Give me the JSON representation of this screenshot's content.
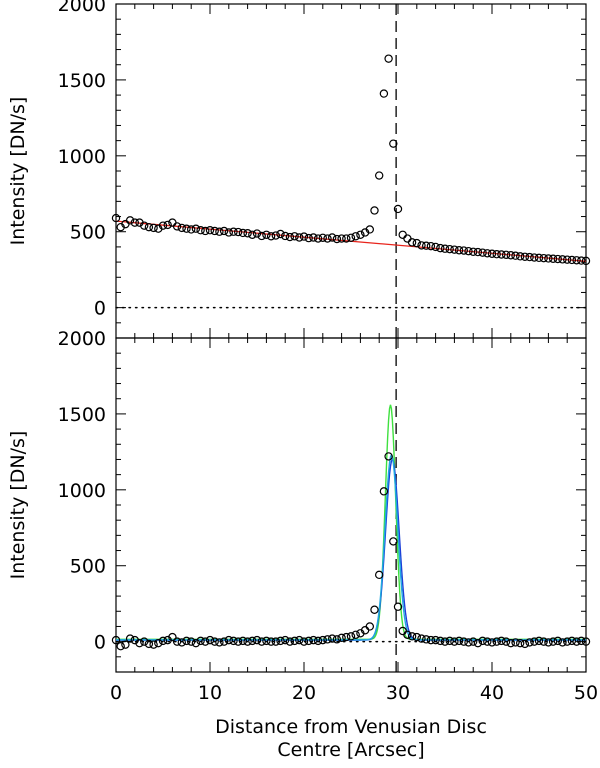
{
  "chart_data": [
    {
      "type": "scatter",
      "panel": "top",
      "ylabel": "Intensity [DN/s]",
      "xlim": [
        0,
        50
      ],
      "ylim": [
        -200,
        2000
      ],
      "yticks": [
        0,
        500,
        1000,
        1500,
        2000
      ],
      "xticks": [],
      "reference_lines": {
        "vertical_dashed_x": 29.8,
        "horizontal_dotted_y": 0
      },
      "series": [
        {
          "kind": "points",
          "marker": "open-circle",
          "color": "#000000",
          "x": [
            0.0,
            0.5,
            1.0,
            1.5,
            2.0,
            2.5,
            3.0,
            3.5,
            4.0,
            4.5,
            5.0,
            5.5,
            6.0,
            6.5,
            7.0,
            7.5,
            8.0,
            8.5,
            9.0,
            9.5,
            10.0,
            10.5,
            11.0,
            11.5,
            12.0,
            12.5,
            13.0,
            13.5,
            14.0,
            14.5,
            15.0,
            15.5,
            16.0,
            16.5,
            17.0,
            17.5,
            18.0,
            18.5,
            19.0,
            19.5,
            20.0,
            20.5,
            21.0,
            21.5,
            22.0,
            22.5,
            23.0,
            23.5,
            24.0,
            24.5,
            25.0,
            25.5,
            26.0,
            26.5,
            27.0,
            27.5,
            28.0,
            28.5,
            29.0,
            29.5,
            30.0,
            30.5,
            31.0,
            31.5,
            32.0,
            32.5,
            33.0,
            33.5,
            34.0,
            34.5,
            35.0,
            35.5,
            36.0,
            36.5,
            37.0,
            37.5,
            38.0,
            38.5,
            39.0,
            39.5,
            40.0,
            40.5,
            41.0,
            41.5,
            42.0,
            42.5,
            43.0,
            43.5,
            44.0,
            44.5,
            45.0,
            45.5,
            46.0,
            46.5,
            47.0,
            47.5,
            48.0,
            48.5,
            49.0,
            49.5,
            50.0
          ],
          "y": [
            590,
            530,
            550,
            575,
            560,
            560,
            540,
            530,
            525,
            520,
            540,
            545,
            560,
            535,
            525,
            520,
            515,
            520,
            510,
            505,
            510,
            505,
            500,
            505,
            495,
            500,
            498,
            492,
            490,
            480,
            488,
            472,
            480,
            470,
            475,
            485,
            472,
            465,
            470,
            462,
            468,
            458,
            462,
            455,
            460,
            455,
            462,
            452,
            455,
            455,
            460,
            470,
            480,
            495,
            515,
            640,
            870,
            1410,
            1640,
            1080,
            650,
            480,
            455,
            430,
            425,
            410,
            408,
            405,
            400,
            392,
            388,
            385,
            382,
            378,
            376,
            372,
            368,
            366,
            362,
            358,
            355,
            352,
            350,
            348,
            345,
            342,
            338,
            335,
            333,
            330,
            328,
            326,
            324,
            322,
            320,
            318,
            316,
            314,
            312,
            310,
            308
          ]
        },
        {
          "kind": "line",
          "color": "#e8241c",
          "x": [
            0,
            50
          ],
          "y": [
            570,
            305
          ]
        }
      ]
    },
    {
      "type": "scatter",
      "panel": "bottom",
      "ylabel": "Intensity [DN/s]",
      "xlabel": "Distance from Venusian Disc Centre [Arcsec]",
      "xlabel_lines": [
        "Distance from Venusian Disc",
        "Centre [Arcsec]"
      ],
      "xlim": [
        0,
        50
      ],
      "ylim": [
        -200,
        2000
      ],
      "yticks": [
        0,
        500,
        1000,
        1500,
        2000
      ],
      "xticks": [
        0,
        10,
        20,
        30,
        40,
        50
      ],
      "reference_lines": {
        "vertical_dashed_x": 29.8,
        "horizontal_dotted_y": 0
      },
      "series": [
        {
          "kind": "points",
          "marker": "open-circle",
          "color": "#000000",
          "x": [
            0.0,
            0.5,
            1.0,
            1.5,
            2.0,
            2.5,
            3.0,
            3.5,
            4.0,
            4.5,
            5.0,
            5.5,
            6.0,
            6.5,
            7.0,
            7.5,
            8.0,
            8.5,
            9.0,
            9.5,
            10.0,
            10.5,
            11.0,
            11.5,
            12.0,
            12.5,
            13.0,
            13.5,
            14.0,
            14.5,
            15.0,
            15.5,
            16.0,
            16.5,
            17.0,
            17.5,
            18.0,
            18.5,
            19.0,
            19.5,
            20.0,
            20.5,
            21.0,
            21.5,
            22.0,
            22.5,
            23.0,
            23.5,
            24.0,
            24.5,
            25.0,
            25.5,
            26.0,
            26.5,
            27.0,
            27.5,
            28.0,
            28.5,
            29.0,
            29.5,
            30.0,
            30.5,
            31.0,
            31.5,
            32.0,
            32.5,
            33.0,
            33.5,
            34.0,
            34.5,
            35.0,
            35.5,
            36.0,
            36.5,
            37.0,
            37.5,
            38.0,
            38.5,
            39.0,
            39.5,
            40.0,
            40.5,
            41.0,
            41.5,
            42.0,
            42.5,
            43.0,
            43.5,
            44.0,
            44.5,
            45.0,
            45.5,
            46.0,
            46.5,
            47.0,
            47.5,
            48.0,
            48.5,
            49.0,
            49.5,
            50.0
          ],
          "y": [
            10,
            -30,
            -20,
            20,
            10,
            -10,
            0,
            -15,
            -20,
            -10,
            5,
            10,
            30,
            0,
            -5,
            5,
            0,
            -10,
            5,
            0,
            10,
            0,
            -5,
            0,
            10,
            5,
            0,
            5,
            0,
            5,
            10,
            0,
            5,
            0,
            0,
            5,
            10,
            0,
            5,
            10,
            0,
            5,
            10,
            5,
            10,
            15,
            20,
            15,
            25,
            30,
            35,
            45,
            55,
            75,
            100,
            210,
            440,
            990,
            1220,
            660,
            230,
            70,
            45,
            35,
            30,
            20,
            15,
            10,
            10,
            5,
            0,
            5,
            0,
            5,
            0,
            -5,
            0,
            -10,
            5,
            0,
            -5,
            0,
            5,
            0,
            -10,
            -5,
            -10,
            -15,
            -5,
            0,
            5,
            0,
            -5,
            0,
            5,
            -5,
            0,
            5,
            0,
            5,
            0
          ]
        },
        {
          "kind": "curve",
          "name": "",
          "color": "#3fe03f",
          "peak_x": 29.2,
          "peak_y": 1560,
          "sigma": 0.55,
          "baseline": 15
        },
        {
          "kind": "curve",
          "name": "",
          "color": "#1c3fd8",
          "peak_x": 29.4,
          "peak_y": 1200,
          "sigma": 0.72,
          "baseline": 10
        },
        {
          "kind": "curve",
          "name": "",
          "color": "#1fa8e0",
          "peak_x": 29.3,
          "peak_y": 1230,
          "sigma": 0.68,
          "baseline": 12
        }
      ]
    }
  ]
}
